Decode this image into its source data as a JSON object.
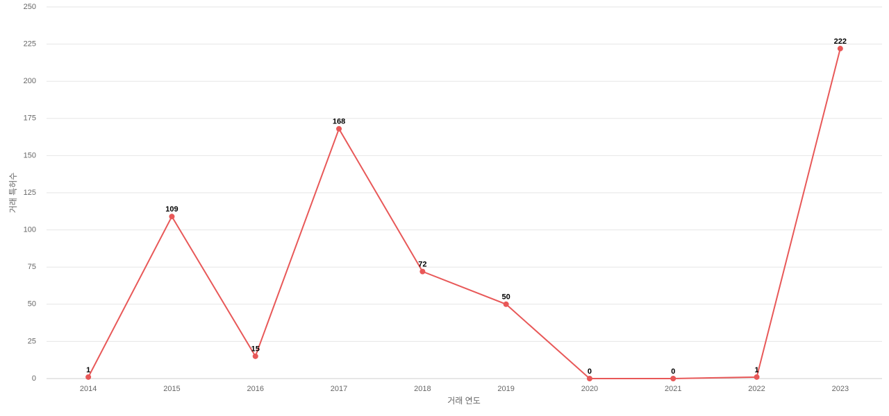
{
  "chart_data": {
    "type": "line",
    "x_label": "거래 연도",
    "y_label": "거래 특허수",
    "categories": [
      "2014",
      "2015",
      "2016",
      "2017",
      "2018",
      "2019",
      "2020",
      "2021",
      "2022",
      "2023"
    ],
    "values": [
      1,
      109,
      15,
      168,
      72,
      50,
      0,
      0,
      1,
      222
    ],
    "color": "#e85858",
    "ylim": [
      0,
      250
    ],
    "yticks": [
      0,
      25,
      50,
      75,
      100,
      125,
      150,
      175,
      200,
      225,
      250
    ],
    "grid": true,
    "data_labels": true
  }
}
